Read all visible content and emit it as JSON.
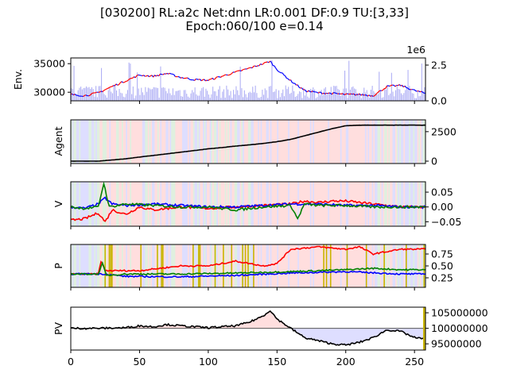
{
  "figure": {
    "title_line1": "[030200] RL:a2c Net:dnn LR:0.001 DF:0.9 TU:[3,33]",
    "title_line2": "Epoch:060/100 e=0.14"
  },
  "colors": {
    "buy": "#ff0000",
    "sell": "#0000ff",
    "hold": "#008000",
    "line": "#000000",
    "buy_bg": "#ffdede",
    "sell_bg": "#dedeff",
    "hold_bg": "#dff0df",
    "exploration": "#c8b400"
  },
  "chart_data": [
    {
      "type": "line",
      "panel": "env",
      "ylabel": "Env.",
      "xlim": [
        0,
        258
      ],
      "yticks": [
        "35000",
        "30000"
      ],
      "ylim": [
        28500,
        36000
      ],
      "secondary": {
        "type": "bar",
        "label": "volume",
        "offset_label": "1e6",
        "yticks": [
          "2.5",
          "0.0"
        ],
        "ylim": [
          0,
          3.0
        ]
      },
      "series": [
        {
          "x": [
            0,
            10,
            20,
            30,
            40,
            50,
            60,
            70,
            80,
            90,
            100,
            110,
            120,
            130,
            140,
            145,
            150,
            160,
            170,
            180,
            190,
            200,
            210,
            220,
            230,
            240,
            250,
            258
          ],
          "values": [
            29600,
            29400,
            29900,
            31000,
            32000,
            33000,
            32800,
            33300,
            32600,
            32200,
            32100,
            32800,
            33500,
            34200,
            35000,
            35400,
            34000,
            32000,
            30300,
            29900,
            29800,
            29600,
            29600,
            29400,
            31000,
            31200,
            30300,
            29800
          ]
        }
      ]
    },
    {
      "type": "line",
      "panel": "agent",
      "ylabel": "Agent",
      "xlim": [
        0,
        258
      ],
      "yticks": [
        "2500",
        "0"
      ],
      "ylim": [
        -200,
        3500
      ],
      "series": [
        {
          "x": [
            0,
            20,
            30,
            40,
            50,
            60,
            70,
            80,
            90,
            100,
            110,
            120,
            130,
            140,
            150,
            160,
            170,
            180,
            190,
            200,
            210,
            258
          ],
          "values": [
            0,
            0,
            100,
            200,
            350,
            480,
            620,
            760,
            900,
            1050,
            1150,
            1280,
            1380,
            1500,
            1650,
            1850,
            2150,
            2450,
            2750,
            3000,
            3050,
            3050
          ]
        }
      ]
    },
    {
      "type": "line",
      "panel": "value",
      "ylabel": "V",
      "xlim": [
        0,
        258
      ],
      "yticks": [
        "0.05",
        "0.00",
        "−0.05"
      ],
      "ylim": [
        -0.065,
        0.085
      ],
      "series": [
        {
          "name": "buy",
          "x": [
            0,
            10,
            20,
            25,
            30,
            40,
            50,
            60,
            80,
            100,
            120,
            140,
            160,
            170,
            180,
            190,
            200,
            210,
            220,
            230,
            240,
            258
          ],
          "values": [
            -0.045,
            -0.04,
            -0.02,
            -0.05,
            -0.01,
            -0.025,
            0.0,
            -0.01,
            0.0,
            -0.005,
            0.0,
            0.005,
            0.01,
            0.02,
            0.015,
            0.02,
            0.02,
            0.015,
            0.01,
            0.005,
            0.0,
            0.0
          ]
        },
        {
          "name": "sell",
          "x": [
            0,
            10,
            20,
            25,
            30,
            40,
            60,
            80,
            100,
            120,
            140,
            160,
            180,
            200,
            220,
            240,
            258
          ],
          "values": [
            0.0,
            -0.005,
            0.01,
            0.03,
            0.01,
            0.005,
            0.01,
            0.005,
            0.0,
            0.0,
            0.005,
            0.01,
            0.01,
            0.005,
            0.005,
            0.0,
            0.0
          ]
        },
        {
          "name": "hold",
          "x": [
            0,
            10,
            20,
            24,
            28,
            40,
            60,
            80,
            100,
            120,
            140,
            160,
            165,
            170,
            180,
            200,
            220,
            240,
            258
          ],
          "values": [
            0.0,
            -0.005,
            0.0,
            0.08,
            0.0,
            0.01,
            0.005,
            0.0,
            0.0,
            -0.01,
            0.0,
            0.005,
            -0.04,
            0.01,
            0.005,
            0.005,
            0.0,
            0.0,
            0.0
          ]
        }
      ]
    },
    {
      "type": "line",
      "panel": "policy",
      "ylabel": "P",
      "xlim": [
        0,
        258
      ],
      "yticks": [
        "0.75",
        "0.50",
        "0.25"
      ],
      "ylim": [
        0.05,
        0.95
      ],
      "series": [
        {
          "name": "buy",
          "x": [
            0,
            20,
            22,
            25,
            30,
            50,
            80,
            100,
            120,
            140,
            150,
            160,
            180,
            200,
            210,
            220,
            240,
            258
          ],
          "values": [
            0.33,
            0.33,
            0.6,
            0.4,
            0.4,
            0.4,
            0.5,
            0.5,
            0.6,
            0.5,
            0.55,
            0.85,
            0.9,
            0.85,
            0.9,
            0.75,
            0.85,
            0.85
          ]
        },
        {
          "name": "sell",
          "x": [
            0,
            20,
            25,
            40,
            80,
            120,
            160,
            200,
            240,
            258
          ],
          "values": [
            0.33,
            0.33,
            0.33,
            0.28,
            0.27,
            0.3,
            0.35,
            0.38,
            0.33,
            0.33
          ]
        },
        {
          "name": "hold",
          "x": [
            0,
            20,
            23,
            26,
            40,
            80,
            120,
            160,
            200,
            220,
            240,
            258
          ],
          "values": [
            0.33,
            0.33,
            0.55,
            0.3,
            0.33,
            0.33,
            0.35,
            0.38,
            0.42,
            0.45,
            0.42,
            0.42
          ]
        }
      ]
    },
    {
      "type": "area",
      "panel": "pv",
      "ylabel": "PV",
      "xlim": [
        0,
        258
      ],
      "xticks": [
        "0",
        "50",
        "100",
        "150",
        "200",
        "250"
      ],
      "yticks": [
        "105000000",
        "100000000",
        "95000000"
      ],
      "ylim": [
        93000000,
        106800000
      ],
      "baseline": 100000000,
      "series": [
        {
          "x": [
            0,
            20,
            40,
            50,
            60,
            70,
            80,
            90,
            100,
            110,
            120,
            130,
            140,
            145,
            150,
            160,
            170,
            180,
            190,
            200,
            210,
            220,
            230,
            240,
            250,
            258
          ],
          "values": [
            100000000,
            100000000,
            100200000,
            100800000,
            100500000,
            101200000,
            100800000,
            100500000,
            100200000,
            100500000,
            100800000,
            102000000,
            104000000,
            105800000,
            103000000,
            100000000,
            97000000,
            96000000,
            95000000,
            94600000,
            95500000,
            97000000,
            99500000,
            99000000,
            97000000,
            96500000
          ]
        }
      ]
    }
  ]
}
